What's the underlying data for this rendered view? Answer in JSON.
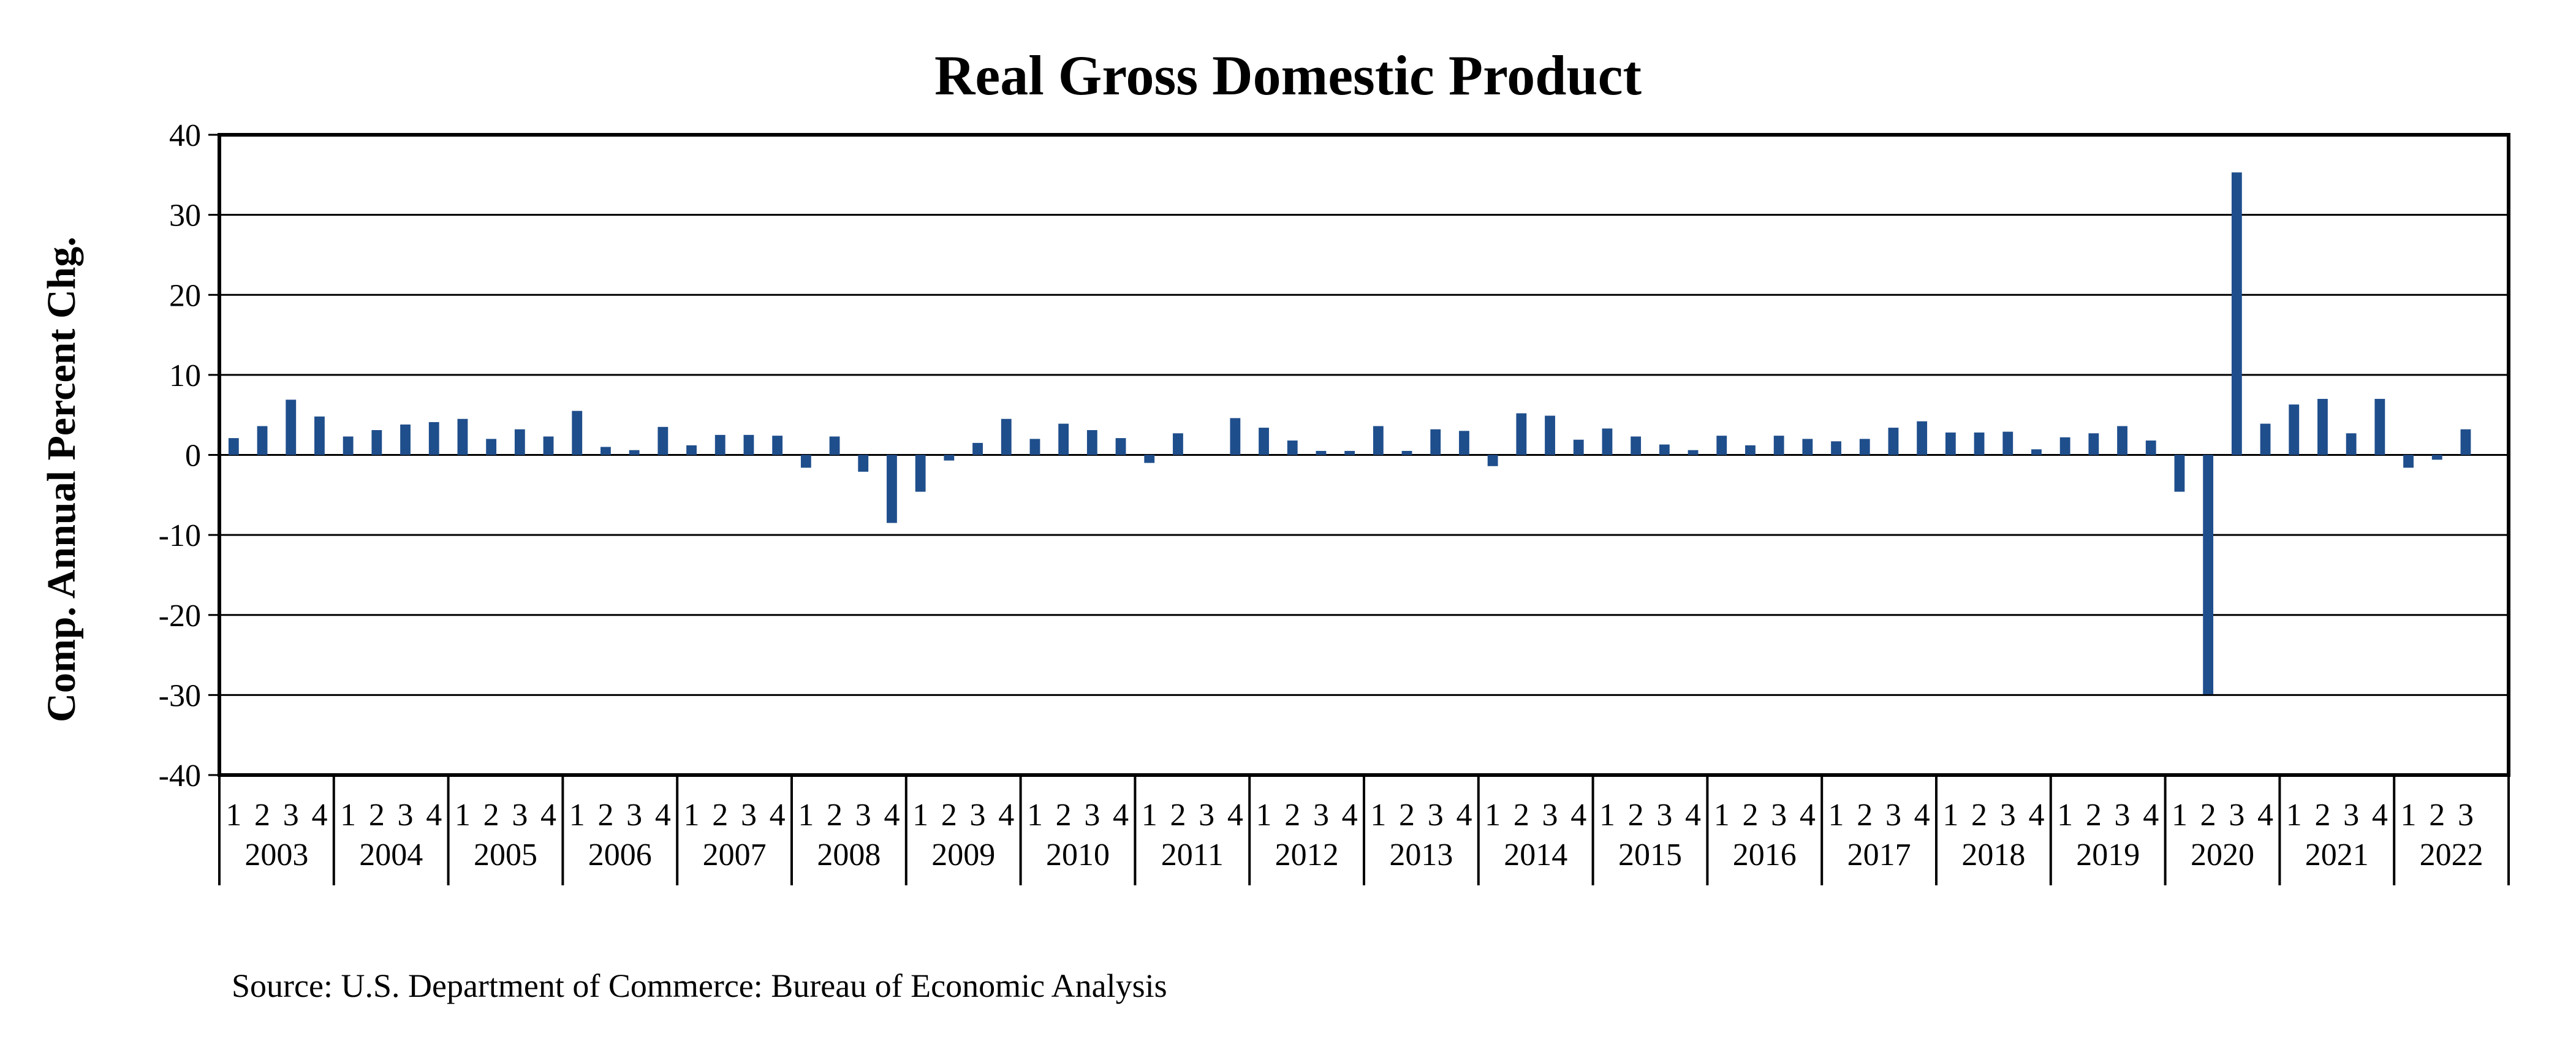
{
  "chart_data": {
    "type": "bar",
    "title": "Real Gross Domestic Product",
    "ylabel": "Comp. Annual Percent Chg.",
    "xlabel": "",
    "ylim": [
      -40,
      40
    ],
    "yticks": [
      40,
      30,
      20,
      10,
      0,
      -10,
      -20,
      -30,
      -40
    ],
    "grid": true,
    "legend": "none",
    "bar_color": "#1f4e8c",
    "years": [
      "2003",
      "2004",
      "2005",
      "2006",
      "2007",
      "2008",
      "2009",
      "2010",
      "2011",
      "2012",
      "2013",
      "2014",
      "2015",
      "2016",
      "2017",
      "2018",
      "2019",
      "2020",
      "2021",
      "2022"
    ],
    "quarter_labels": [
      "1",
      "2",
      "3",
      "4"
    ],
    "values": [
      2.1,
      3.6,
      6.9,
      4.8,
      2.3,
      3.1,
      3.8,
      4.1,
      4.5,
      2.0,
      3.2,
      2.3,
      5.5,
      1.0,
      0.6,
      3.5,
      1.2,
      2.5,
      2.5,
      2.4,
      -1.6,
      2.3,
      -2.1,
      -8.5,
      -4.6,
      -0.7,
      1.5,
      4.5,
      2.0,
      3.9,
      3.1,
      2.1,
      -1.0,
      2.7,
      0.0,
      4.6,
      3.4,
      1.8,
      0.5,
      0.5,
      3.6,
      0.5,
      3.2,
      3.0,
      -1.4,
      5.2,
      4.9,
      1.9,
      3.3,
      2.3,
      1.3,
      0.6,
      2.4,
      1.2,
      2.4,
      2.0,
      1.7,
      2.0,
      3.4,
      4.2,
      2.8,
      2.8,
      2.9,
      0.7,
      2.2,
      2.7,
      3.6,
      1.8,
      -4.6,
      -29.9,
      35.3,
      3.9,
      6.3,
      7.0,
      2.7,
      7.0,
      -1.6,
      -0.6,
      3.2
    ]
  },
  "source": "Source: U.S. Department of Commerce: Bureau of Economic Analysis"
}
